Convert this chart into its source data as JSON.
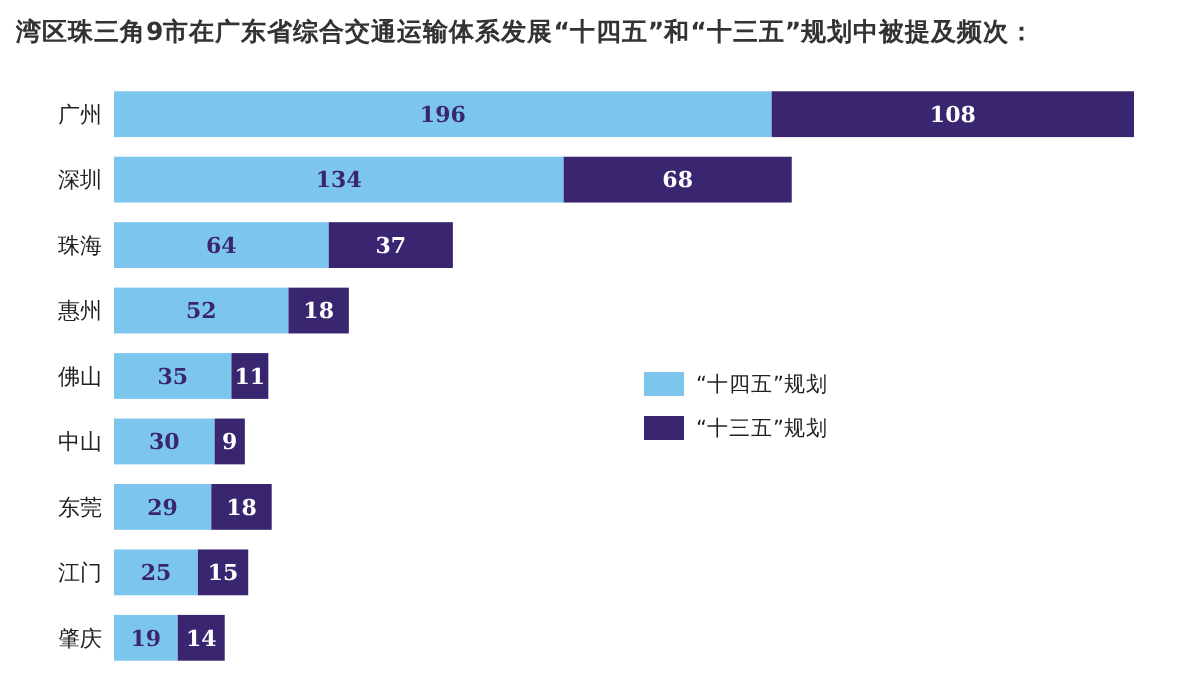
{
  "chart_data": {
    "type": "bar",
    "orientation": "horizontal",
    "stacked": true,
    "data_labels": true,
    "legend": "right",
    "title": "湾区珠三角9市在广东省综合交通运输体系发展“十四五”和“十三五”规划中被提及频次：",
    "categories": [
      "广州",
      "深圳",
      "珠海",
      "惠州",
      "佛山",
      "中山",
      "东莞",
      "江门",
      "肇庆"
    ],
    "series": [
      {
        "name": "“十四五”规划",
        "color": "#7cc6ee",
        "values": [
          196,
          134,
          64,
          52,
          35,
          30,
          29,
          25,
          19
        ]
      },
      {
        "name": "“十三五”规划",
        "color": "#3a2670",
        "values": [
          108,
          68,
          37,
          18,
          11,
          9,
          18,
          15,
          14
        ]
      }
    ]
  }
}
